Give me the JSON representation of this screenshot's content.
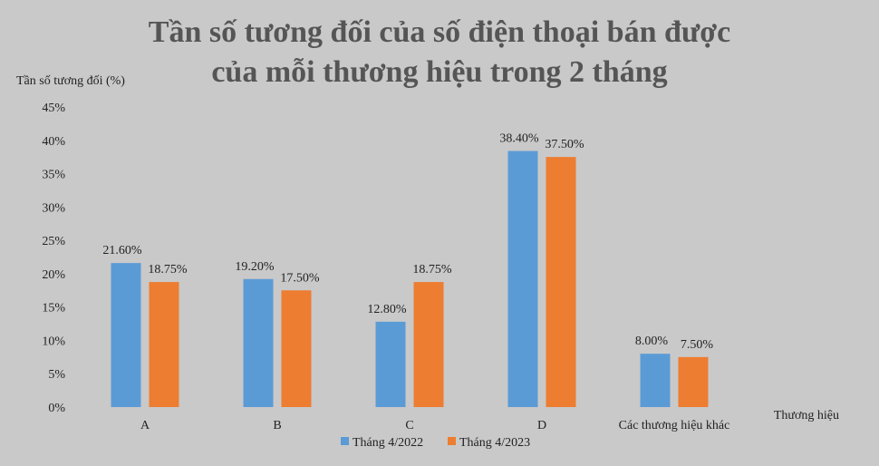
{
  "chart_data": {
    "type": "bar",
    "title_lines": [
      "Tần số tương đối của số điện thoại bán được",
      "của mỗi thương hiệu trong 2 tháng"
    ],
    "ylabel": "Tần số tương đối (%)",
    "xlabel": "Thương hiệu",
    "categories": [
      "A",
      "B",
      "C",
      "D",
      "Các thương  hiệu  khác"
    ],
    "series": [
      {
        "name": "Tháng 4/2022",
        "color": "#5b9bd5",
        "values": [
          21.6,
          19.2,
          12.8,
          38.4,
          8.0
        ],
        "labels": [
          "21.60%",
          "19.20%",
          "12.80%",
          "38.40%",
          "8.00%"
        ]
      },
      {
        "name": "Tháng 4/2023",
        "color": "#ed7d31",
        "values": [
          18.75,
          17.5,
          18.75,
          37.5,
          7.5
        ],
        "labels": [
          "18.75%",
          "17.50%",
          "18.75%",
          "37.50%",
          "7.50%"
        ]
      }
    ],
    "ylim": [
      0,
      45
    ],
    "yticks": [
      0,
      5,
      10,
      15,
      20,
      25,
      30,
      35,
      40,
      45
    ],
    "ytick_labels": [
      "0%",
      "5%",
      "10%",
      "15%",
      "20%",
      "25%",
      "30%",
      "35%",
      "40%",
      "45%"
    ],
    "legend_position": "bottom-center",
    "grid": false
  }
}
